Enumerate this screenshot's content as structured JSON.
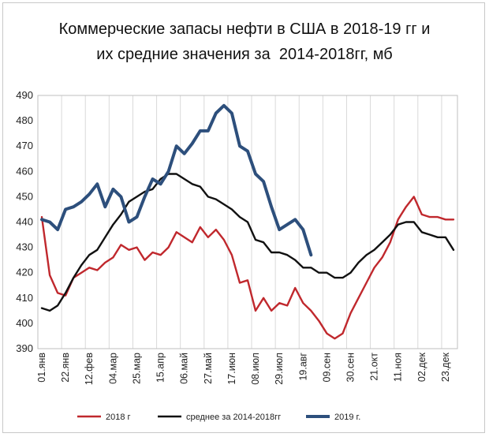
{
  "chart_data": {
    "type": "line",
    "title": "Коммерческие запасы нефти в США в 2018-19 гг и",
    "subtitle": "их средние значения за  2014-2018гг, мб",
    "xlabel": "",
    "ylabel": "",
    "ylim": [
      390,
      490
    ],
    "yticks": [
      390,
      400,
      410,
      420,
      430,
      440,
      450,
      460,
      470,
      480,
      490
    ],
    "x_tick_labels": [
      "01.янв",
      "22.янв",
      "12.фев",
      "04.мар",
      "25.мар",
      "15.апр",
      "06.май",
      "27.май",
      "17.июн",
      "08.июл",
      "29.июл",
      "19.авг",
      "09.сен",
      "30.сен",
      "21.окт",
      "11.ноя",
      "02.дек",
      "23.дек"
    ],
    "weeks": 53,
    "grid": "vertical",
    "legend_position": "bottom",
    "series": [
      {
        "name": "2018 г",
        "color": "#c0282d",
        "values": [
          442,
          419,
          412,
          411,
          418,
          420,
          422,
          421,
          424,
          426,
          431,
          429,
          430,
          425,
          428,
          427,
          430,
          436,
          434,
          432,
          438,
          434,
          437,
          433,
          427,
          416,
          417,
          405,
          410,
          405,
          408,
          407,
          414,
          408,
          405,
          401,
          396,
          394,
          396,
          404,
          410,
          416,
          422,
          426,
          432,
          441,
          446,
          450,
          443,
          442,
          442,
          441,
          441
        ]
      },
      {
        "name": "среднее за 2014-2018гг",
        "color": "#111111",
        "values": [
          406,
          405,
          407,
          412,
          418,
          423,
          427,
          429,
          434,
          439,
          443,
          448,
          450,
          452,
          453,
          457,
          459,
          459,
          457,
          455,
          454,
          450,
          449,
          447,
          445,
          442,
          440,
          433,
          432,
          428,
          428,
          427,
          425,
          422,
          422,
          420,
          420,
          418,
          418,
          420,
          424,
          427,
          429,
          432,
          435,
          439,
          440,
          440,
          436,
          435,
          434,
          434,
          429
        ]
      },
      {
        "name": "2019 г.",
        "color": "#2d4f7c",
        "values": [
          441,
          440,
          437,
          445,
          446,
          448,
          451,
          455,
          446,
          453,
          450,
          440,
          442,
          450,
          457,
          455,
          460,
          470,
          467,
          471,
          476,
          476,
          483,
          486,
          483,
          470,
          468,
          459,
          456,
          446,
          437,
          439,
          441,
          437,
          427
        ]
      }
    ]
  }
}
